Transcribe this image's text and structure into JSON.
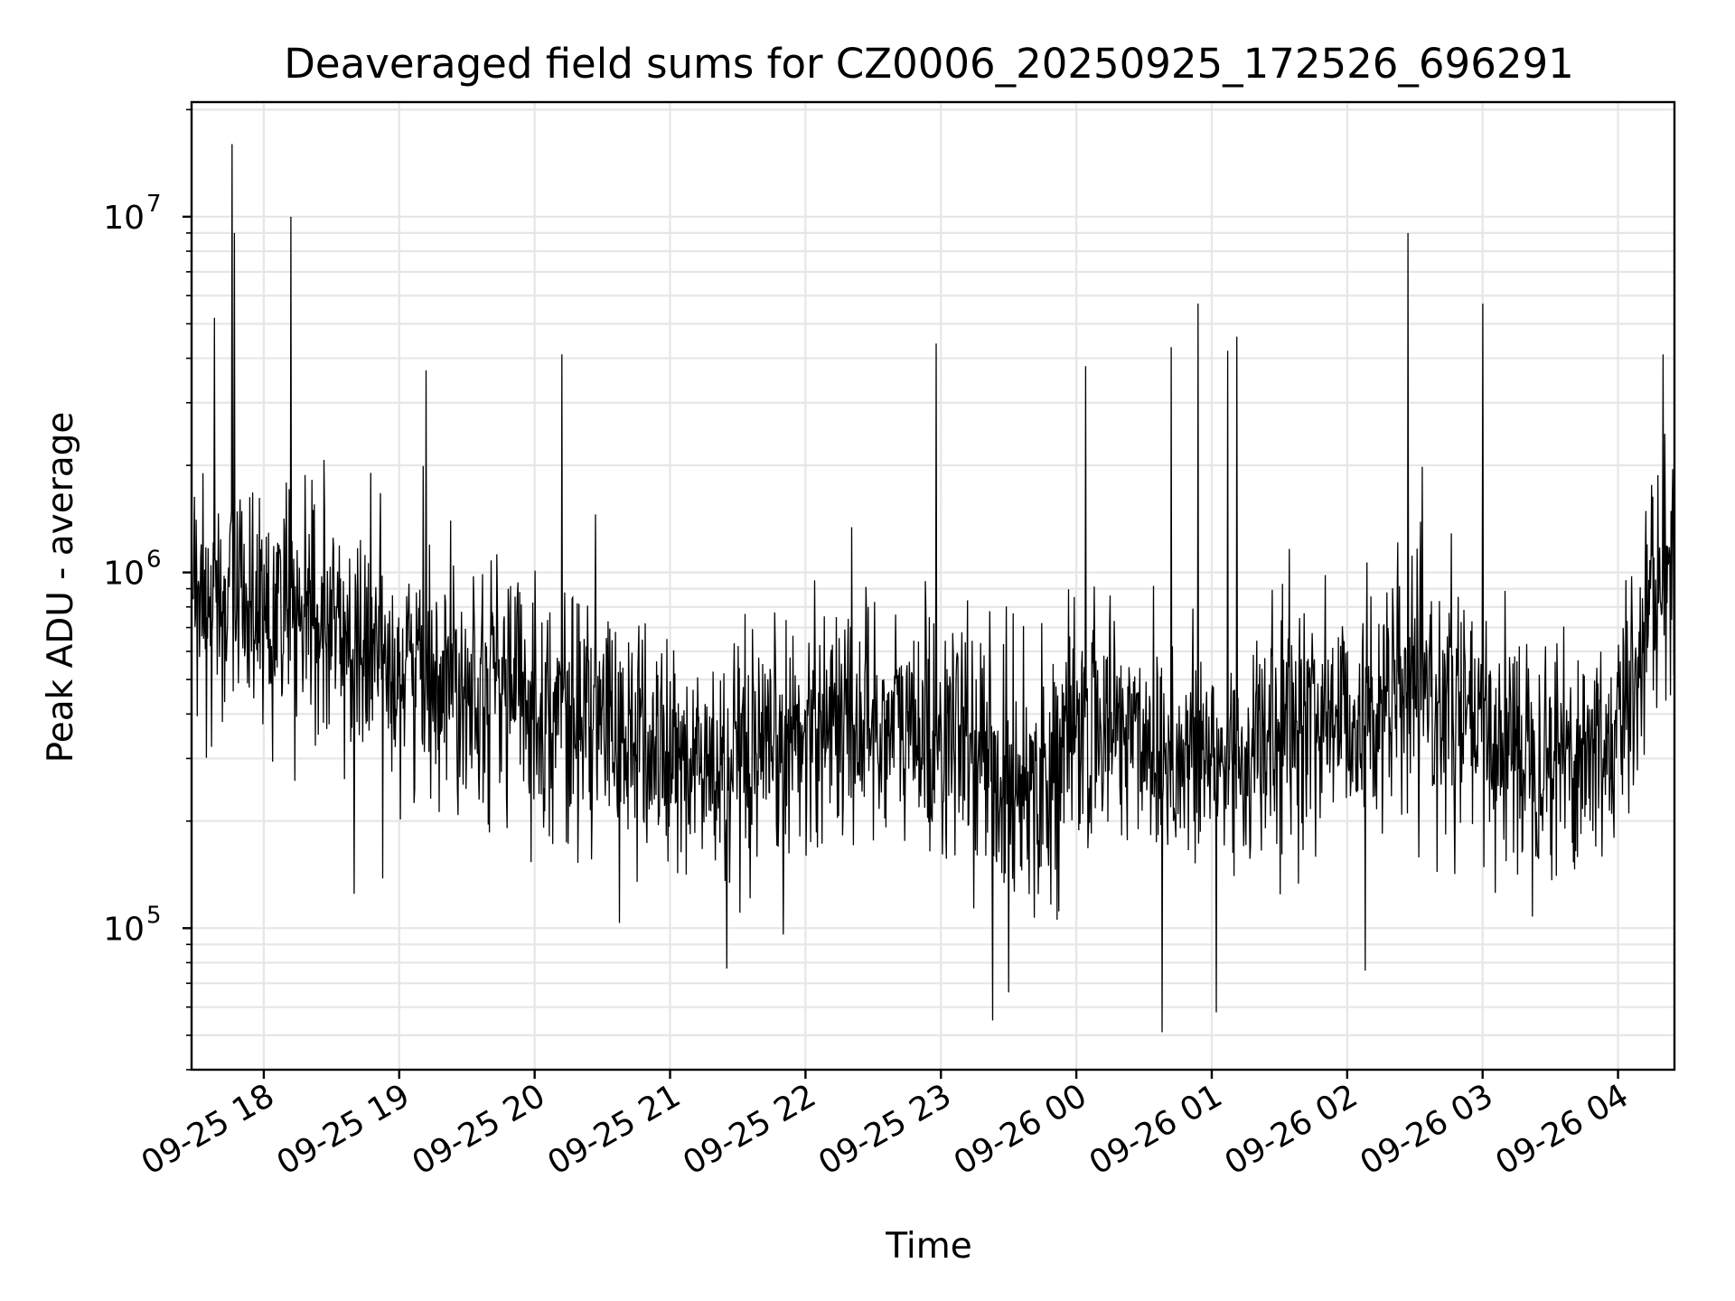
{
  "chart_data": {
    "type": "line",
    "title": "Deaveraged field sums for CZ0006_20250925_172526_696291",
    "xlabel": "Time",
    "ylabel": "Peak ADU - average",
    "yscale": "log",
    "ylim": [
      40000,
      21000000
    ],
    "xlim": [
      "2025-09-25 17:28",
      "2025-09-26 04:25"
    ],
    "grid": true,
    "x_tick_labels": [
      "09-25 18",
      "09-25 19",
      "09-25 20",
      "09-25 21",
      "09-25 22",
      "09-25 23",
      "09-26 00",
      "09-26 01",
      "09-26 02",
      "09-26 03",
      "09-26 04"
    ],
    "y_tick_labels": [
      {
        "base": "10",
        "exp": "5"
      },
      {
        "base": "10",
        "exp": "6"
      },
      {
        "base": "10",
        "exp": "7"
      }
    ],
    "series_color": "#000000",
    "series": [
      {
        "x": [
          "09-25 17:30",
          "09-25 17:45",
          "09-25 18:00",
          "09-25 18:15",
          "09-25 18:30",
          "09-25 18:45",
          "09-25 19:00",
          "09-25 19:15",
          "09-25 19:30",
          "09-25 19:45",
          "09-25 20:00",
          "09-25 20:15",
          "09-25 20:30",
          "09-25 20:45",
          "09-25 21:00",
          "09-25 21:15",
          "09-25 21:30",
          "09-25 21:45",
          "09-25 22:00",
          "09-25 22:15",
          "09-25 22:30",
          "09-25 22:45",
          "09-25 23:00",
          "09-25 23:15",
          "09-25 23:30",
          "09-25 23:45",
          "09-26 00:00",
          "09-26 00:15",
          "09-26 00:30",
          "09-26 00:45",
          "09-26 01:00",
          "09-26 01:15",
          "09-26 01:30",
          "09-26 01:45",
          "09-26 02:00",
          "09-26 02:15",
          "09-26 02:30",
          "09-26 02:45",
          "09-26 03:00",
          "09-26 03:15",
          "09-26 03:30",
          "09-26 03:45",
          "09-26 04:00",
          "09-26 04:15",
          "09-26 04:25"
        ],
        "y": [
          750000,
          850000,
          800000,
          720000,
          680000,
          600000,
          560000,
          530000,
          520000,
          500000,
          430000,
          400000,
          380000,
          330000,
          300000,
          280000,
          260000,
          280000,
          380000,
          400000,
          380000,
          360000,
          350000,
          320000,
          260000,
          270000,
          340000,
          380000,
          350000,
          300000,
          290000,
          300000,
          350000,
          400000,
          400000,
          420000,
          450000,
          420000,
          340000,
          330000,
          320000,
          310000,
          340000,
          900000,
          950000
        ]
      }
    ],
    "peaks": [
      {
        "x": "09-25 17:46",
        "y": 16000000
      },
      {
        "x": "09-25 17:47",
        "y": 9000000
      },
      {
        "x": "09-25 18:12",
        "y": 10000000
      },
      {
        "x": "09-25 17:38",
        "y": 5200000
      },
      {
        "x": "09-25 19:12",
        "y": 3700000
      },
      {
        "x": "09-25 20:12",
        "y": 4100000
      },
      {
        "x": "09-25 22:58",
        "y": 4400000
      },
      {
        "x": "09-26 00:04",
        "y": 3800000
      },
      {
        "x": "09-26 00:42",
        "y": 4300000
      },
      {
        "x": "09-26 00:54",
        "y": 5700000
      },
      {
        "x": "09-26 01:07",
        "y": 4200000
      },
      {
        "x": "09-26 01:11",
        "y": 4600000
      },
      {
        "x": "09-26 02:27",
        "y": 9000000
      },
      {
        "x": "09-26 03:00",
        "y": 5700000
      },
      {
        "x": "09-26 04:20",
        "y": 4100000
      }
    ],
    "troughs": [
      {
        "x": "09-25 18:40",
        "y": 125000
      },
      {
        "x": "09-25 21:25",
        "y": 77000
      },
      {
        "x": "09-25 23:23",
        "y": 55000
      },
      {
        "x": "09-25 23:30",
        "y": 66000
      },
      {
        "x": "09-26 00:38",
        "y": 51000
      },
      {
        "x": "09-26 01:02",
        "y": 58000
      },
      {
        "x": "09-26 02:08",
        "y": 76000
      }
    ]
  }
}
